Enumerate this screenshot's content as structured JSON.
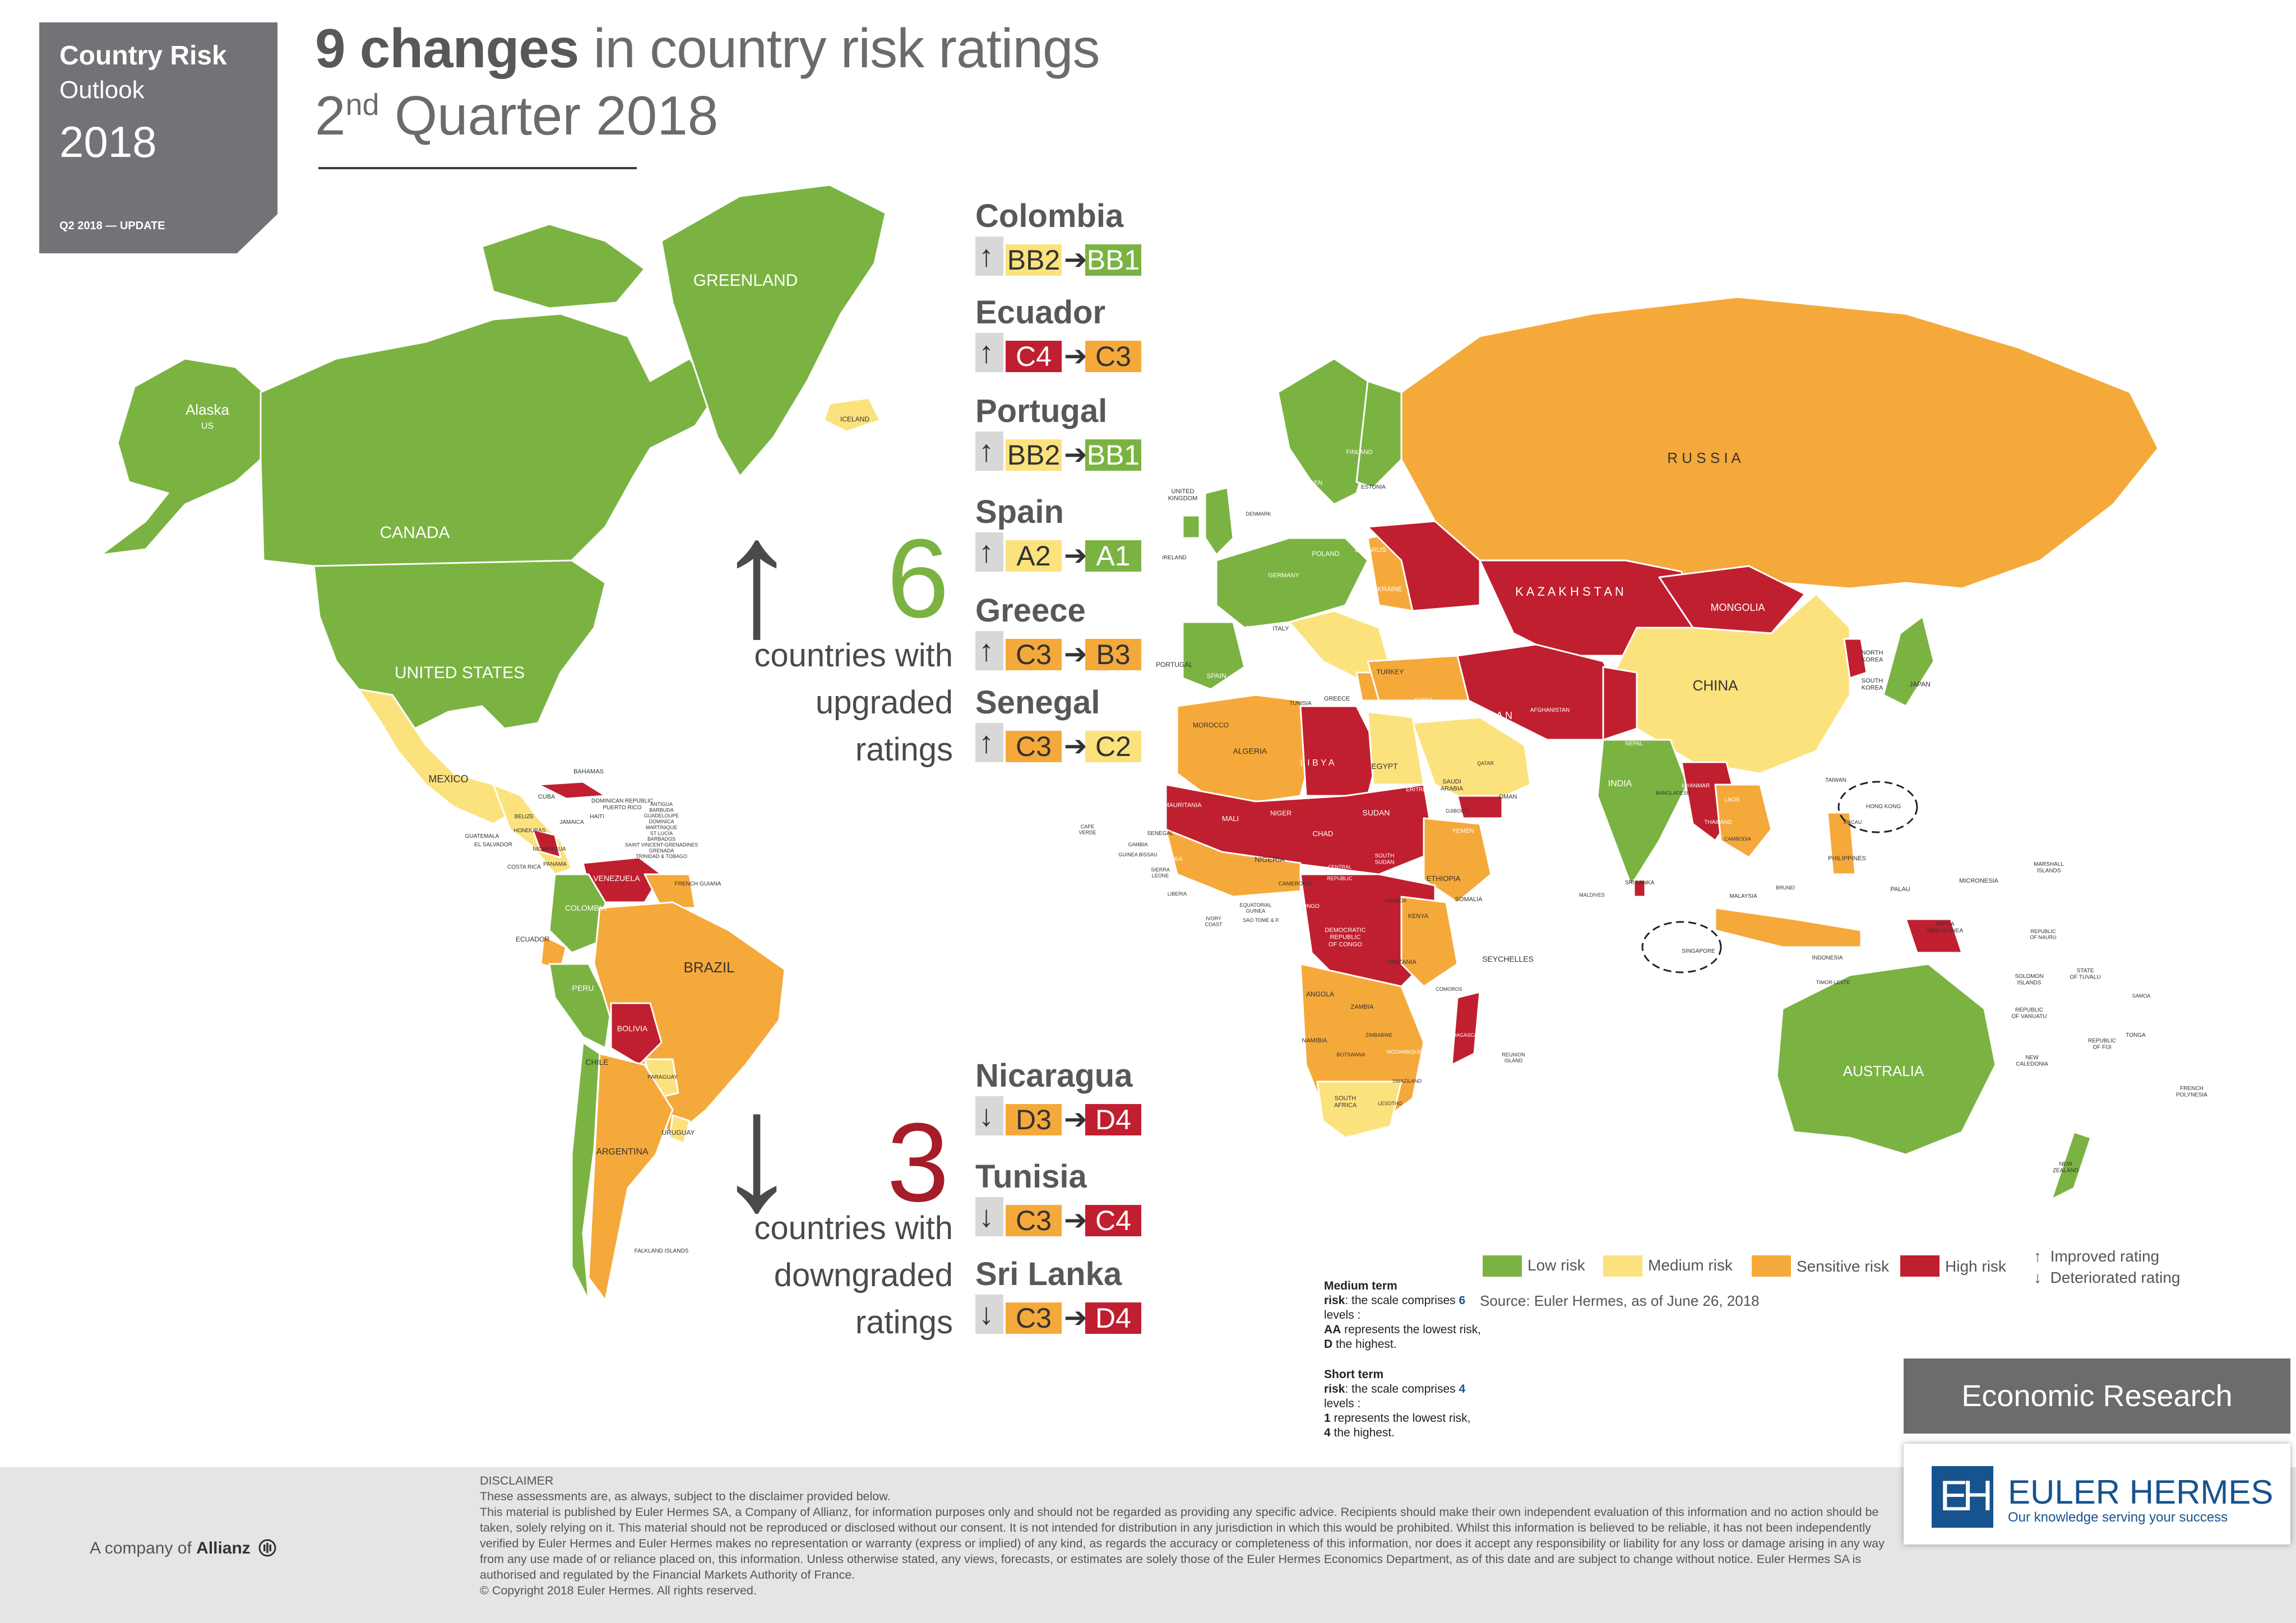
{
  "brand": {
    "line1": "Country Risk",
    "line2": "Outlook",
    "year": "2018",
    "update": "Q2 2018 — UPDATE"
  },
  "title": {
    "bold": "9 changes",
    "rest": " in country risk ratings",
    "ordinal": "2",
    "ordinal_sup": "nd",
    "quarter": " Quarter 2018"
  },
  "upgrades": {
    "count": "6",
    "text": [
      "countries with",
      "upgraded",
      "ratings"
    ],
    "items": [
      {
        "country": "Colombia",
        "arrow": "↑",
        "from": "BB2",
        "to": "BB1"
      },
      {
        "country": "Ecuador",
        "arrow": "↑",
        "from": "C4",
        "to": "C3"
      },
      {
        "country": "Portugal",
        "arrow": "↑",
        "from": "BB2",
        "to": "BB1"
      },
      {
        "country": "Spain",
        "arrow": "↑",
        "from": "A2",
        "to": "A1"
      },
      {
        "country": "Greece",
        "arrow": "↑",
        "from": "C3",
        "to": "B3"
      },
      {
        "country": "Senegal",
        "arrow": "↑",
        "from": "C3",
        "to": "C2"
      }
    ]
  },
  "downgrades": {
    "count": "3",
    "text": [
      "countries with",
      "downgraded",
      "ratings"
    ],
    "items": [
      {
        "country": "Nicaragua",
        "arrow": "↓",
        "from": "D3",
        "to": "D4"
      },
      {
        "country": "Tunisia",
        "arrow": "↓",
        "from": "C3",
        "to": "C4"
      },
      {
        "country": "Sri Lanka",
        "arrow": "↓",
        "from": "C3",
        "to": "D4"
      }
    ]
  },
  "rating_colors": {
    "BB2": "#fce27d",
    "BB1": "#7bb342",
    "C4": "#c01f2f",
    "C3": "#f5a93a",
    "A2": "#fce27d",
    "A1": "#7bb342",
    "B3": "#f5a93a",
    "C2": "#fce27d",
    "D3": "#f5a93a",
    "D4": "#c01f2f"
  },
  "rating_text_colors": {
    "BB2": "#333333",
    "BB1": "#ffffff",
    "C4": "#ffffff",
    "C3": "#333333",
    "A2": "#333333",
    "A1": "#ffffff",
    "B3": "#333333",
    "C2": "#333333",
    "D3": "#333333",
    "D4": "#ffffff"
  },
  "map_labels": {
    "greenland": "GREENLAND",
    "alaska": "Alaska",
    "us_small": "US",
    "canada": "CANADA",
    "united_states": "UNITED STATES",
    "mexico": "MEXICO",
    "bahamas": "BAHAMAS",
    "cuba": "CUBA",
    "dominican": "DOMINICAN REPUBLIC",
    "puerto_rico": "PUERTO RICO",
    "jamaica": "JAMAICA",
    "haiti": "HAITI",
    "belize": "BELIZE",
    "honduras": "HONDURAS",
    "guatemala": "GUATEMALA",
    "el_salvador": "EL SALVADOR",
    "nicaragua": "NICARAGUA",
    "costa_rica": "COSTA RICA",
    "panama": "PANAMA",
    "venezuela": "VENEZUELA",
    "french_guiana": "FRENCH GUIANA",
    "colombia": "COLOMBIA",
    "ecuador": "ECUADOR",
    "peru": "PERU",
    "brazil": "BRAZIL",
    "bolivia": "BOLIVIA",
    "paraguay": "PARAGUAY",
    "chile": "CHILE",
    "argentina": "ARGENTINA",
    "uruguay": "URUGUAY",
    "falkland": "FALKLAND ISLANDS",
    "antilles": "ANTIGUA\nBARBUDA\nGUADELOUPE\nDOMINICA\nMARTINIQUE\nST LUCIA\nBARBADOS\nSAINT VINCENT-GRENADINES\nGRENADA\nTRINIDAD & TOBAGO",
    "iceland": "ICELAND",
    "norway": "NORWAY",
    "sweden": "SWEDEN",
    "finland": "FINLAND",
    "estonia": "ESTONIA",
    "united_kingdom": "UNITED\nKINGDOM",
    "ireland": "IRELAND",
    "denmark": "DENMARK",
    "russia": "R  U  S  S  I  A",
    "belarus": "BELARUS",
    "poland": "POLAND",
    "ukraine": "UKRAINE",
    "germany": "GERMANY",
    "france": "FRANCE",
    "spain": "SPAIN",
    "portugal": "PORTUGAL",
    "italy": "ITALY",
    "greece": "GREECE",
    "turkey": "TURKEY",
    "kazakhstan": "K A Z A K H S T A N",
    "mongolia": "MONGOLIA",
    "china": "CHINA",
    "north_korea": "NORTH\nKOREA",
    "south_korea": "SOUTH\nKOREA",
    "japan": "JAPAN",
    "iran": "I R A N",
    "iraq": "IRAQ",
    "syria": "SYRIA",
    "afghanistan": "AFGHANISTAN",
    "pakistan": "PAKISTAN",
    "india": "INDIA",
    "nepal": "NEPAL",
    "bangladesh": "BANGLADESH",
    "myanmar": "MYANMAR",
    "laos": "LAOS",
    "thailand": "THAILAND",
    "cambodia": "CAMBODIA",
    "taiwan": "TAIWAN",
    "hong_kong": "HONG KONG",
    "macau": "MACAU",
    "philippines": "PHILIPPINES",
    "palau": "PALAU",
    "micronesia": "MICRONESIA",
    "marshall": "MARSHALL\nISLANDS",
    "malaysia": "MALAYSIA",
    "brunei": "BRUNEI",
    "singapore": "SINGAPORE",
    "indonesia": "INDONESIA",
    "timor": "TIMOR-LESTE",
    "png": "PAPUA\nNEW GUINEA",
    "nauru": "REPUBLIC\nOF NAURU",
    "solomon": "SOLOMON\nISLANDS",
    "tuvalu": "STATE\nOF TUVALU",
    "samoa": "SAMOA",
    "vanuatu": "REPUBLIC\nOF VANUATU",
    "fiji": "REPUBLIC\nOF FIJI",
    "tonga": "TONGA",
    "new_caledonia": "NEW\nCALEDONIA",
    "french_polynesia": "FRENCH\nPOLYNESIA",
    "australia": "AUSTRALIA",
    "new_zealand": "NEW\nZEALAND",
    "sri_lanka": "SRI LANKA",
    "maldives": "MALDIVES",
    "seychelles": "SEYCHELLES",
    "saudi": "SAUDI\nARABIA",
    "yemen": "YEMEN",
    "oman": "OMAN",
    "qatar": "QATAR",
    "morocco": "MOROCCO",
    "algeria": "ALGERIA",
    "libya": "L I B Y A",
    "egypt": "EGYPT",
    "tunisia": "TUNISIA",
    "mauritania": "MAURITANIA",
    "mali": "MALI",
    "niger": "NIGER",
    "chad": "CHAD",
    "sudan": "SUDAN",
    "eritrea": "ERITREA",
    "ethiopia": "ETHIOPIA",
    "somalia": "SOMALIA",
    "senegal": "SENEGAL",
    "gambia": "GAMBIA",
    "guinea_bissau": "GUINEA BISSAU",
    "guinea": "GUINEA",
    "sierra_leone": "SIERRA\nLEONE",
    "liberia": "LIBERIA",
    "ivory_coast": "IVORY\nCOAST",
    "nigeria": "NIGERIA",
    "cameroon": "CAMEROON",
    "car": "CENTRAL\nAFRICAN\nREPUBLIC",
    "south_sudan": "SOUTH\nSUDAN",
    "kenya": "KENYA",
    "uganda": "UGANDA",
    "congo": "CONGO",
    "drc": "DEMOCRATIC\nREPUBLIC\nOF CONGO",
    "gabon": "GABON",
    "sao_tome": "SAO TOME & P.",
    "eq_guinea": "EQUATORIAL\nGUINEA",
    "tanzania": "TANZANIA",
    "angola": "ANGOLA",
    "zambia": "ZAMBIA",
    "namibia": "NAMIBIA",
    "botswana": "BOTSWANA",
    "zimbabwe": "ZIMBABWE",
    "mozambique": "MOZAMBIQUE",
    "madagascar": "MADAGASCAR",
    "south_africa": "SOUTH\nAFRICA",
    "lesotho": "LESOTHO",
    "swaziland": "SWAZILAND",
    "comoros": "COMOROS",
    "reunion": "REUNION\nISLAND",
    "cape_verde": "CAPE\nVERDE",
    "djibouti": "DJIBOUTI"
  },
  "legend": {
    "low": "Low risk",
    "medium": "Medium risk",
    "sensitive": "Sensitive risk",
    "high": "High risk",
    "improved": "Improved rating",
    "deteriorated": "Deteriorated rating",
    "improved_icon": "↑",
    "deteriorated_icon": "↓",
    "source": "Source: Euler Hermes, as of June 26, 2018",
    "colors": {
      "low": "#7bb342",
      "medium": "#fce27d",
      "sensitive": "#f5a93a",
      "high": "#c01f2f"
    }
  },
  "notes": {
    "medium_title": "Medium term\nrisk",
    "medium_body_a": ": the scale comprises ",
    "medium_levels": "6",
    "medium_body_b": " levels :",
    "medium_aa": "AA",
    "medium_aa_text": " represents the lowest risk,",
    "medium_d": "D",
    "medium_d_text": " the highest.",
    "short_title": "Short term\nrisk",
    "short_body_a": ": the scale comprises ",
    "short_levels": "4",
    "short_body_b": " levels :",
    "short_1": "1",
    "short_1_text": " represents the lowest risk,",
    "short_4": "4",
    "short_4_text": " the highest."
  },
  "econ_research": "Economic Research",
  "logo": {
    "mark": "EH",
    "name": "EULER HERMES",
    "tagline": "Our knowledge serving your success"
  },
  "allianz": {
    "prefix": "A company of ",
    "name": "Allianz",
    "icon": "allianz-icon"
  },
  "disclaimer": {
    "heading": "DISCLAIMER",
    "line1": "These assessments are, as always, subject to the disclaimer provided below.",
    "body": "This material is published by Euler Hermes SA, a Company of Allianz, for information purposes only and should not be regarded as providing any specific advice. Recipients should make their own independent evaluation of this information and no action should be taken, solely relying on it. This material should not be reproduced or disclosed without our consent. It is not intended for distribution in any jurisdiction in which this would be prohibited. Whilst this information is believed to be reliable, it has not been independently verified by Euler Hermes and Euler Hermes makes no representation or warranty (express or implied) of any kind, as regards the accuracy or completeness of this information, nor does it accept any responsibility or liability for any loss or damage arising in any way from any use made of or reliance placed on, this information. Unless otherwise stated, any views, forecasts, or estimates are solely those of the Euler Hermes Economics Department, as of this date and are subject to change without notice. Euler Hermes SA is authorised and regulated by the Financial Markets Authority of France.",
    "copyright": "© Copyright 2018 Euler Hermes. All rights reserved."
  }
}
